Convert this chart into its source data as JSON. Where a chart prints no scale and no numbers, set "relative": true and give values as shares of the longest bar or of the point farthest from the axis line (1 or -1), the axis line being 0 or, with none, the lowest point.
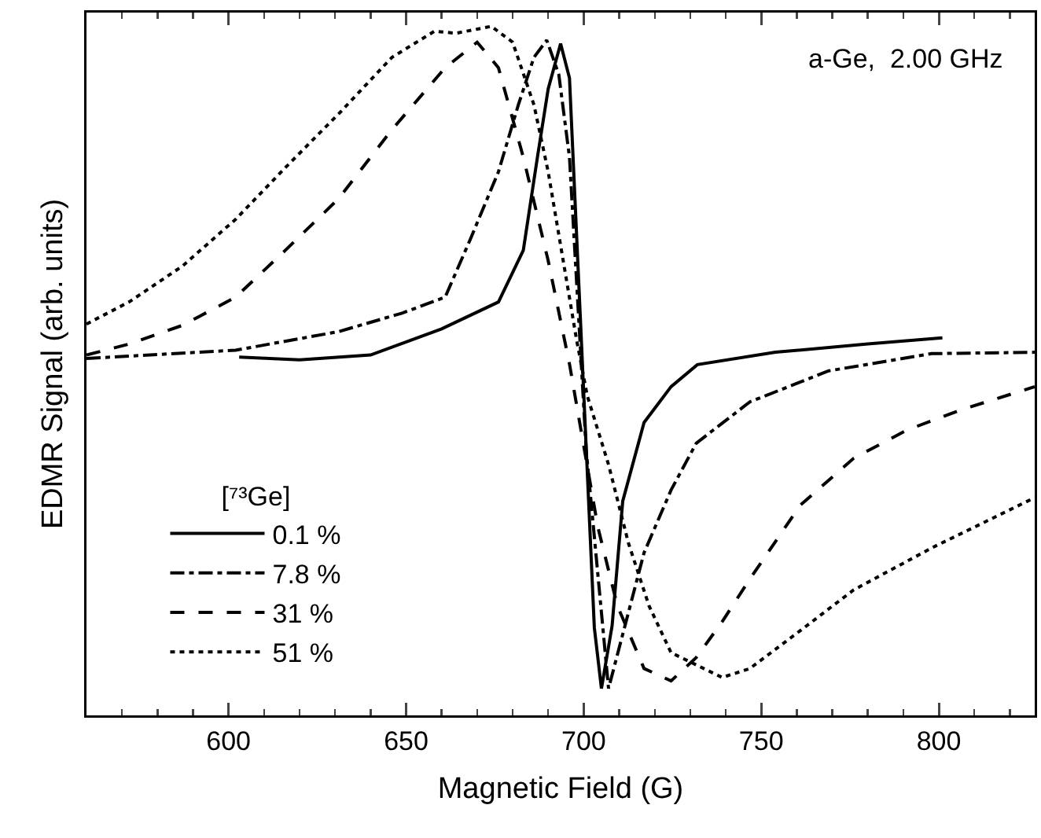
{
  "chart_data": {
    "type": "line",
    "relative": true,
    "xlabel": "Magnetic Field (G)",
    "ylabel": "EDMR Signal (arb. units)",
    "legend_title": "[⁷³Ge]",
    "legend": "bottom left",
    "grid": false,
    "marker": "none",
    "annotations": [
      "a-Ge,  2.00 GHz"
    ],
    "xlim": [
      560,
      827
    ],
    "xticks": [
      {
        "value": 570,
        "label": null
      },
      {
        "value": 580,
        "label": null
      },
      {
        "value": 590,
        "label": null
      },
      600,
      {
        "value": 610,
        "label": null
      },
      {
        "value": 620,
        "label": null
      },
      {
        "value": 630,
        "label": null
      },
      {
        "value": 640,
        "label": null
      },
      650,
      {
        "value": 660,
        "label": null
      },
      {
        "value": 670,
        "label": null
      },
      {
        "value": 680,
        "label": null
      },
      {
        "value": 690,
        "label": null
      },
      700,
      {
        "value": 710,
        "label": null
      },
      {
        "value": 720,
        "label": null
      },
      {
        "value": 730,
        "label": null
      },
      {
        "value": 740,
        "label": null
      },
      750,
      {
        "value": 760,
        "label": null
      },
      {
        "value": 770,
        "label": null
      },
      {
        "value": 780,
        "label": null
      },
      {
        "value": 790,
        "label": null
      },
      800,
      {
        "value": 810,
        "label": null
      },
      {
        "value": 820,
        "label": null
      }
    ],
    "series": [
      {
        "name": "0.1 %",
        "color": "#000000",
        "line_style": "solid",
        "x": [
          603,
          620,
          640,
          660,
          676,
          683,
          687,
          690,
          693.5,
          696,
          699,
          701,
          703,
          705,
          708,
          711,
          717,
          724.6,
          732,
          754,
          780,
          801
        ],
        "values": [
          0.52,
          0.516,
          0.523,
          0.561,
          0.6,
          0.675,
          0.811,
          0.909,
          0.975,
          0.925,
          0.584,
          0.355,
          0.127,
          0.039,
          0.13,
          0.311,
          0.425,
          0.477,
          0.509,
          0.527,
          0.539,
          0.548
        ]
      },
      {
        "name": "7.8 %",
        "color": "#000000",
        "line_style": "dashdot",
        "x": [
          560,
          602,
          631,
          649,
          661,
          668,
          676,
          681.6,
          686,
          689.6,
          693,
          696,
          700.7,
          707,
          717,
          724.6,
          731.7,
          746.8,
          769,
          798,
          827
        ],
        "values": [
          0.518,
          0.53,
          0.557,
          0.584,
          0.607,
          0.69,
          0.789,
          0.886,
          0.955,
          0.98,
          0.93,
          0.81,
          0.386,
          0.039,
          0.236,
          0.327,
          0.395,
          0.455,
          0.5,
          0.525,
          0.527
        ]
      },
      {
        "name": "31 %",
        "color": "#000000",
        "line_style": "dashed",
        "x": [
          560,
          572,
          587,
          602,
          616,
          631,
          646,
          661,
          670,
          676,
          683,
          690,
          696,
          704,
          709.5,
          717,
          724.6,
          731.7,
          739,
          746.8,
          761,
          776,
          791,
          806,
          827
        ],
        "values": [
          0.523,
          0.539,
          0.566,
          0.607,
          0.675,
          0.75,
          0.85,
          0.94,
          0.977,
          0.94,
          0.81,
          0.66,
          0.51,
          0.273,
          0.159,
          0.068,
          0.05,
          0.084,
          0.136,
          0.198,
          0.305,
          0.373,
          0.414,
          0.443,
          0.477
        ]
      },
      {
        "name": "51 %",
        "color": "#000000",
        "line_style": "dotted",
        "x": [
          560,
          572,
          587,
          602,
          616,
          631,
          646,
          658,
          664,
          674,
          680,
          686,
          690,
          698,
          701,
          707,
          712.6,
          718.4,
          724.6,
          739,
          746.8,
          761,
          776,
          798,
          827
        ],
        "values": [
          0.568,
          0.6,
          0.652,
          0.72,
          0.795,
          0.873,
          0.955,
          0.993,
          0.99,
          1.0,
          0.977,
          0.886,
          0.789,
          0.545,
          0.464,
          0.364,
          0.25,
          0.159,
          0.091,
          0.055,
          0.068,
          0.123,
          0.182,
          0.243,
          0.316
        ]
      }
    ]
  }
}
